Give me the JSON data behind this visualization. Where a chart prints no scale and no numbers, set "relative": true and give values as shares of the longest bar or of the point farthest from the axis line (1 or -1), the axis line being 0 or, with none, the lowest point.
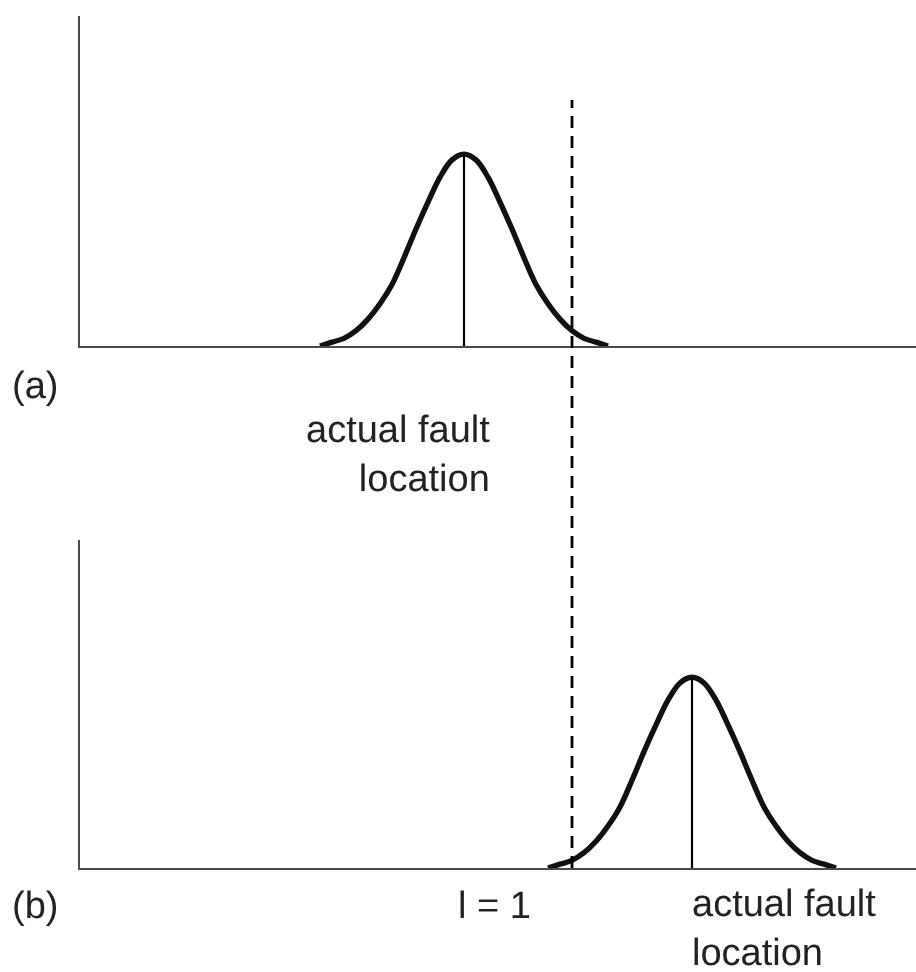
{
  "chart_data": [
    {
      "type": "line",
      "title": "(a)",
      "relative": true,
      "categories": [
        null,
        null,
        null,
        null,
        null,
        null,
        null,
        null,
        null,
        null,
        null,
        null,
        null,
        null,
        null,
        null,
        null,
        null,
        null,
        null,
        null,
        null,
        null,
        null,
        null,
        null,
        null,
        null,
        null,
        null,
        null,
        null,
        null,
        null,
        null,
        null,
        null,
        null,
        null,
        null,
        null,
        null,
        null,
        null,
        null,
        null,
        null,
        null,
        null,
        null,
        null,
        null,
        null,
        null,
        null,
        null,
        null,
        null,
        null,
        null,
        null,
        null,
        null,
        null,
        null,
        null,
        null,
        null,
        null,
        null
      ],
      "series": [
        {
          "color": "#111111",
          "values": [
            null,
            null,
            null,
            null,
            null,
            null,
            null,
            null,
            null,
            null,
            null,
            null,
            null,
            null,
            null,
            null,
            null,
            null,
            null,
            null,
            0,
            0.02,
            0.04,
            0.08,
            0.14,
            0.22,
            0.32,
            0.46,
            0.61,
            0.75,
            0.88,
            0.97,
            1,
            0.97,
            0.88,
            0.75,
            0.61,
            0.46,
            0.32,
            0.22,
            0.14,
            0.08,
            0.04,
            0.02,
            0,
            null,
            null,
            null,
            null,
            null,
            null,
            null,
            null,
            null,
            null,
            null,
            null,
            null,
            null,
            null,
            null,
            null,
            null,
            null,
            null,
            null,
            null,
            null,
            null,
            null
          ]
        }
      ],
      "annotations": [
        "actual fault location"
      ]
    },
    {
      "type": "line",
      "title": "(b)",
      "relative": true,
      "categories": [
        null,
        null,
        null,
        null,
        null,
        null,
        null,
        null,
        null,
        null,
        null,
        null,
        null,
        null,
        null,
        null,
        null,
        null,
        null,
        null,
        null,
        null,
        null,
        null,
        null,
        null,
        null,
        null,
        null,
        null,
        null,
        null,
        null,
        null,
        null,
        null,
        null,
        null,
        null,
        null,
        null,
        null,
        null,
        null,
        null,
        null,
        null,
        null,
        null,
        null,
        null,
        null,
        null,
        null,
        null,
        null,
        null,
        null,
        null,
        null,
        null,
        null,
        null,
        null,
        null,
        null,
        null,
        null,
        null,
        null
      ],
      "series": [
        {
          "color": "#111111",
          "values": [
            null,
            null,
            null,
            null,
            null,
            null,
            null,
            null,
            null,
            null,
            null,
            null,
            null,
            null,
            null,
            null,
            null,
            null,
            null,
            null,
            null,
            null,
            null,
            null,
            null,
            null,
            null,
            null,
            null,
            null,
            null,
            null,
            null,
            null,
            null,
            null,
            null,
            null,
            null,
            0,
            0.02,
            0.04,
            0.08,
            0.14,
            0.22,
            0.32,
            0.46,
            0.61,
            0.75,
            0.88,
            0.97,
            1,
            0.97,
            0.88,
            0.75,
            0.61,
            0.46,
            0.32,
            0.22,
            0.14,
            0.08,
            0.04,
            0.02,
            0,
            null,
            null,
            null,
            null,
            null,
            null
          ]
        }
      ],
      "annotations": [
        "l = 1",
        "actual fault location"
      ]
    }
  ]
}
